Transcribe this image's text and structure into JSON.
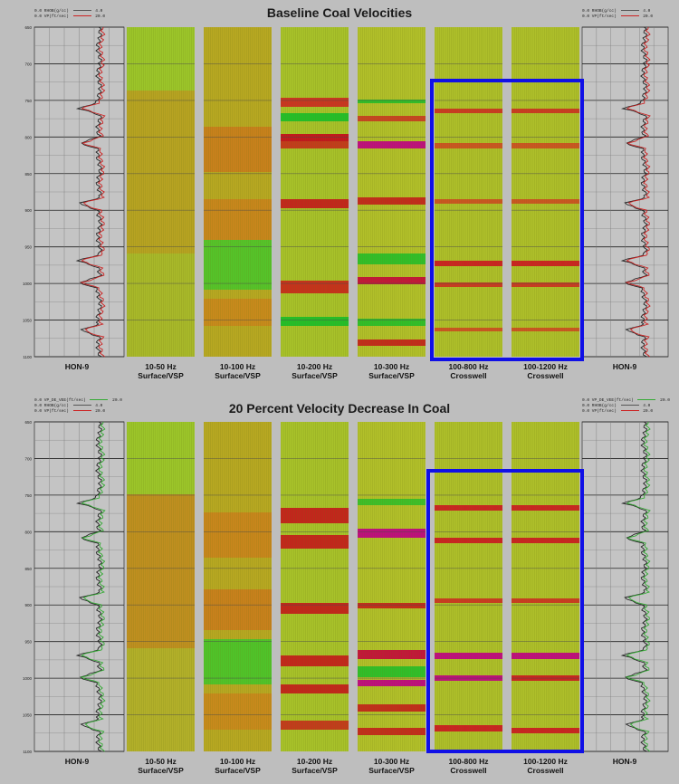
{
  "panels": [
    {
      "id": "top",
      "title": "Baseline Coal Velocities",
      "left_legend": [
        {
          "label": "RHOB(g/cc)",
          "min": "0.0",
          "max": "4.0",
          "color": "#555555"
        },
        {
          "label": "VP(ft/sec)",
          "min": "0.0",
          "max": "20.0",
          "color": "#cc2222"
        }
      ],
      "right_legend": [
        {
          "label": "RHOB(g/cc)",
          "min": "0.0",
          "max": "4.0",
          "color": "#555555"
        },
        {
          "label": "VP(ft/sec)",
          "min": "0.0",
          "max": "20.0",
          "color": "#cc2222"
        }
      ],
      "depth_ticks": [
        "650",
        "700",
        "750",
        "800",
        "850",
        "900",
        "950",
        "1000",
        "1050",
        "1100"
      ],
      "well_label": "HON-9",
      "log_colors": [
        "#222222",
        "#cc2222"
      ],
      "columns": [
        {
          "freq": "10-50 Hz",
          "type": "Surface/VSP"
        },
        {
          "freq": "10-100 Hz",
          "type": "Surface/VSP"
        },
        {
          "freq": "10-200 Hz",
          "type": "Surface/VSP"
        },
        {
          "freq": "10-300 Hz",
          "type": "Surface/VSP"
        },
        {
          "freq": "100-800 Hz",
          "type": "Crosswell"
        },
        {
          "freq": "100-1200 Hz",
          "type": "Crosswell"
        }
      ],
      "highlight_color": "#1010e6"
    },
    {
      "id": "bottom",
      "title": "20 Percent Velocity Decrease In Coal",
      "left_legend": [
        {
          "label": "VP_DE_VEE(ft/sec)",
          "min": "0.0",
          "max": "20.0",
          "color": "#33aa33"
        },
        {
          "label": "RHOB(g/cc)",
          "min": "0.0",
          "max": "4.0",
          "color": "#555555"
        },
        {
          "label": "VP(ft/sec)",
          "min": "0.0",
          "max": "20.0",
          "color": "#cc2222"
        }
      ],
      "right_legend": [
        {
          "label": "VP_DE_VEE(ft/sec)",
          "min": "0.0",
          "max": "20.0",
          "color": "#33aa33"
        },
        {
          "label": "RHOB(g/cc)",
          "min": "0.0",
          "max": "4.0",
          "color": "#555555"
        },
        {
          "label": "VP(ft/sec)",
          "min": "0.0",
          "max": "20.0",
          "color": "#cc2222"
        }
      ],
      "depth_ticks": [
        "650",
        "700",
        "750",
        "800",
        "850",
        "900",
        "950",
        "1000",
        "1050",
        "1100"
      ],
      "well_label": "HON-9",
      "log_colors": [
        "#222222",
        "#33aa33"
      ],
      "columns": [
        {
          "freq": "10-50 Hz",
          "type": "Surface/VSP"
        },
        {
          "freq": "10-100 Hz",
          "type": "Surface/VSP"
        },
        {
          "freq": "10-200 Hz",
          "type": "Surface/VSP"
        },
        {
          "freq": "10-300 Hz",
          "type": "Surface/VSP"
        },
        {
          "freq": "100-800 Hz",
          "type": "Crosswell"
        },
        {
          "freq": "100-1200 Hz",
          "type": "Crosswell"
        }
      ],
      "highlight_color": "#1010e6"
    }
  ]
}
